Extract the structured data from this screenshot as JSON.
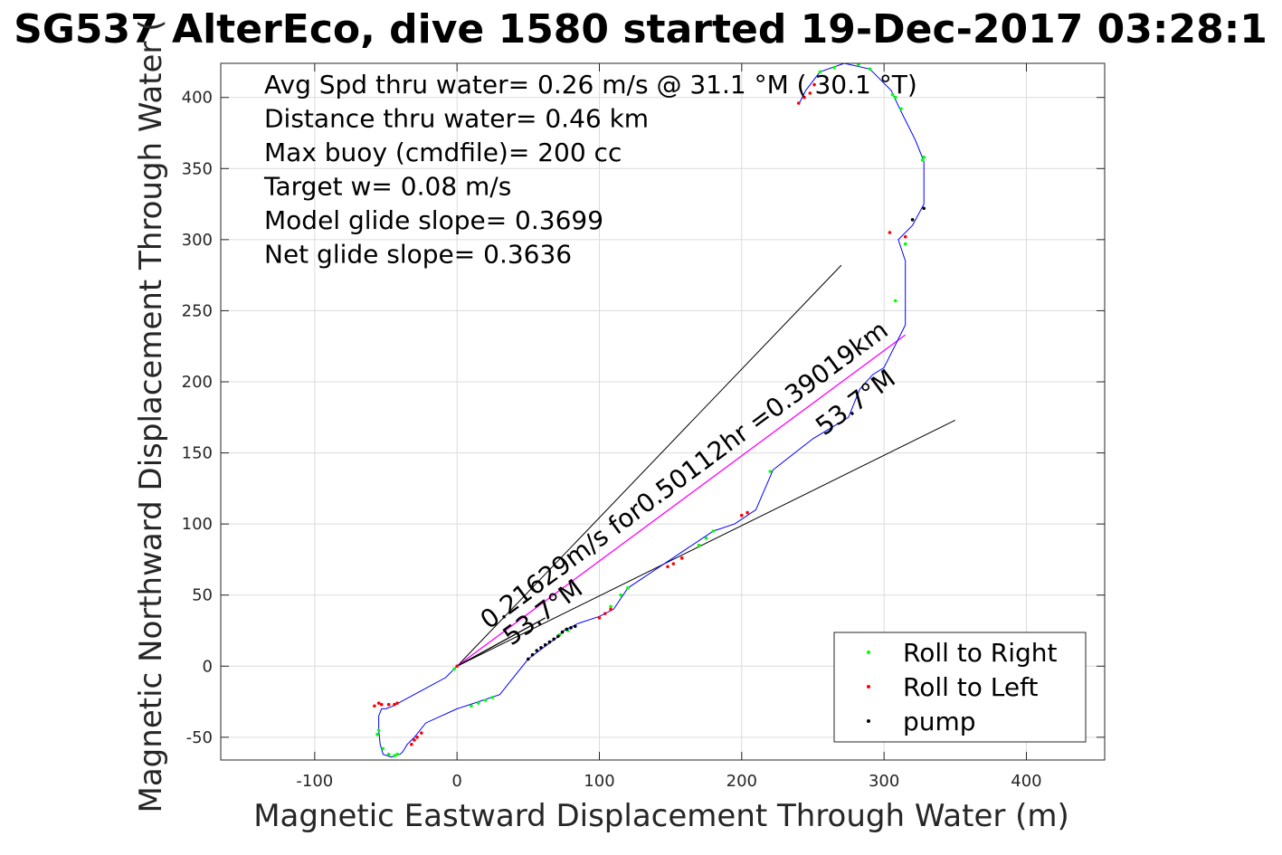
{
  "title": "SG537 AlterEco, dive 1580 started 19-Dec-2017 03:28:1",
  "chart_data": {
    "type": "line",
    "title": "SG537 AlterEco, dive 1580 started 19-Dec-2017 03:28:1",
    "xlabel": "Magnetic Eastward Displacement Through Water (m)",
    "ylabel": "Magnetic Northward Displacement Through Water (",
    "xlim": [
      -166,
      455
    ],
    "ylim": [
      -66,
      424
    ],
    "xticks": [
      -100,
      0,
      100,
      200,
      300,
      400
    ],
    "yticks": [
      -50,
      0,
      50,
      100,
      150,
      200,
      250,
      300,
      350,
      400
    ],
    "xtick_labels": [
      "-100",
      "0",
      "100",
      "200",
      "300",
      "400"
    ],
    "ytick_labels": [
      "-50",
      "0",
      "50",
      "100",
      "150",
      "200",
      "250",
      "300",
      "350",
      "400"
    ],
    "grid": true,
    "annotations": [
      "Avg Spd thru water=  0.26 m/s @  31.1 °M ( 30.1 °T)",
      "Distance thru water=  0.46 km",
      "Max buoy (cmdfile)= 200 cc",
      "Target w= 0.08 m/s",
      "Model glide slope= 0.3699",
      "Net glide slope= 0.3636"
    ],
    "vector_label": "0.21629m/s for0.50112hr =0.39019km",
    "heading_labels": [
      "53.7°M",
      "53.7°M"
    ],
    "track": {
      "color": "#0000ff",
      "x": [
        0,
        -8,
        -45,
        -50,
        -53,
        -55,
        -55,
        -54,
        -52,
        -46,
        -40,
        -38,
        -35,
        -30,
        -22,
        0,
        15,
        30,
        50,
        70,
        75,
        85,
        100,
        110,
        120,
        150,
        165,
        180,
        195,
        210,
        222,
        250,
        275,
        283,
        292,
        300,
        315,
        315,
        310,
        320,
        328,
        328,
        322,
        312,
        305,
        290,
        272,
        255,
        245,
        240
      ],
      "y": [
        0,
        -8,
        -28,
        -30,
        -30,
        -35,
        -45,
        -55,
        -62,
        -64,
        -62,
        -60,
        -55,
        -50,
        -40,
        -30,
        -25,
        -20,
        5,
        20,
        25,
        30,
        35,
        40,
        55,
        75,
        85,
        95,
        100,
        110,
        138,
        160,
        175,
        195,
        205,
        210,
        240,
        285,
        300,
        310,
        325,
        355,
        370,
        390,
        405,
        420,
        424,
        418,
        405,
        395
      ]
    },
    "vectors": [
      {
        "name": "net displacement",
        "color": "#ff00ff",
        "x": [
          0,
          315
        ],
        "y": [
          0,
          233
        ]
      },
      {
        "name": "current",
        "color": "#000000",
        "x": [
          0,
          62
        ],
        "y": [
          0,
          34
        ]
      }
    ],
    "heading_cone": {
      "color": "#000000",
      "x": [
        270,
        0,
        350
      ],
      "y": [
        282,
        0,
        173
      ]
    },
    "series": [
      {
        "name": "Roll to Right",
        "color": "#00ff00",
        "marker": "dot",
        "x": [
          -2,
          -55,
          -56,
          -52,
          -48,
          -44,
          -42,
          10,
          15,
          20,
          25,
          72,
          78,
          108,
          115,
          120,
          170,
          175,
          180,
          220,
          255,
          265,
          282,
          290,
          306,
          308,
          312,
          327,
          328,
          315,
          308
        ],
        "y": [
          -2,
          -45,
          -48,
          -58,
          -62,
          -63,
          -62,
          -28,
          -26,
          -24,
          -22,
          22,
          25,
          42,
          50,
          55,
          85,
          90,
          95,
          137,
          418,
          421,
          423,
          420,
          402,
          400,
          392,
          356,
          358,
          297,
          257
        ]
      },
      {
        "name": "Roll to Left",
        "color": "#ff0000",
        "marker": "dot",
        "x": [
          0,
          -58,
          -55,
          -53,
          -48,
          -44,
          -42,
          -32,
          -30,
          -28,
          -25,
          100,
          104,
          108,
          148,
          152,
          158,
          200,
          204,
          240,
          244,
          248,
          251,
          315,
          304
        ],
        "y": [
          0,
          -28,
          -26,
          -27,
          -27,
          -27,
          -26,
          -55,
          -52,
          -50,
          -47,
          34,
          37,
          40,
          70,
          72,
          76,
          106,
          108,
          396,
          400,
          403,
          409,
          302,
          305
        ]
      },
      {
        "name": "pump",
        "color": "#000000",
        "marker": "dot",
        "x": [
          50,
          53,
          56,
          59,
          62,
          65,
          68,
          71,
          74,
          77,
          80,
          83,
          328,
          320
        ],
        "y": [
          5,
          8,
          11,
          13,
          15,
          17,
          19,
          21,
          24,
          26,
          27,
          28,
          322,
          314
        ]
      }
    ],
    "legend": {
      "placement": "bottom-right",
      "entries": [
        "Roll to Right",
        "Roll to Left",
        "pump"
      ]
    }
  }
}
